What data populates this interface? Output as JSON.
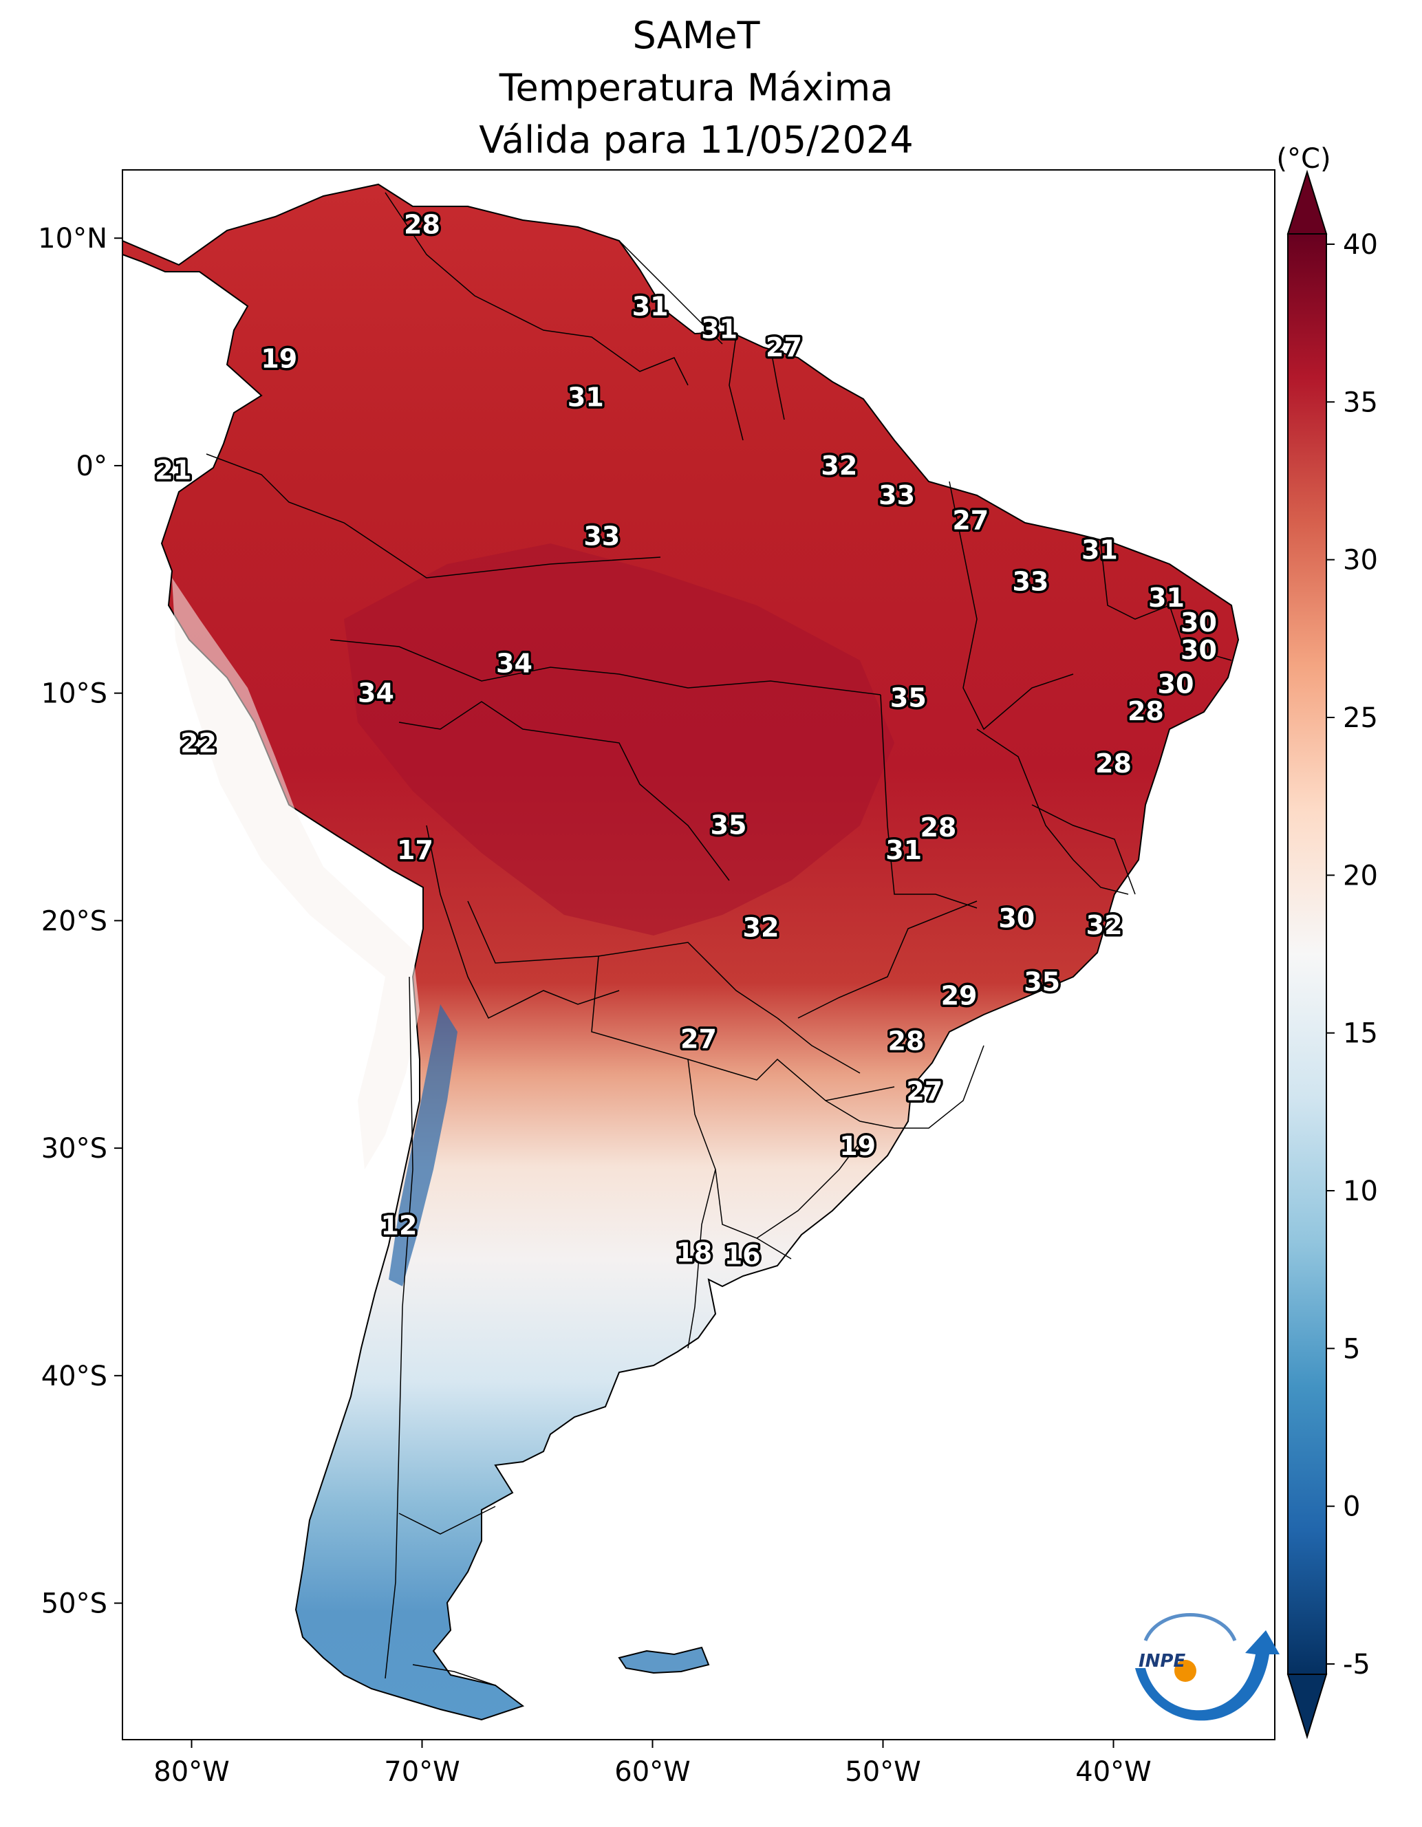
{
  "title": {
    "line1": "SAMeT",
    "line2": "Temperatura Máxima",
    "line3": "Válida para 11/05/2024"
  },
  "map": {
    "region": "South America",
    "variable": "Maximum temperature",
    "lon_range": [
      -83,
      -33
    ],
    "lat_range": [
      -56,
      13
    ],
    "lon_ticks": [
      "80°W",
      "70°W",
      "60°W",
      "50°W",
      "40°W"
    ],
    "lat_ticks": [
      "10°N",
      "0°",
      "10°S",
      "20°S",
      "30°S",
      "40°S",
      "50°S"
    ],
    "station_values": [
      {
        "value": "28",
        "lon": -70.0,
        "lat": 10.6
      },
      {
        "value": "19",
        "lon": -76.2,
        "lat": 4.7
      },
      {
        "value": "21",
        "lon": -80.8,
        "lat": -0.2
      },
      {
        "value": "31",
        "lon": -60.1,
        "lat": 7.0
      },
      {
        "value": "31",
        "lon": -57.1,
        "lat": 6.0
      },
      {
        "value": "27",
        "lon": -54.3,
        "lat": 5.2
      },
      {
        "value": "31",
        "lon": -62.9,
        "lat": 3.0
      },
      {
        "value": "32",
        "lon": -51.9,
        "lat": -0.0
      },
      {
        "value": "33",
        "lon": -49.4,
        "lat": -1.3
      },
      {
        "value": "27",
        "lon": -46.2,
        "lat": -2.4
      },
      {
        "value": "33",
        "lon": -62.2,
        "lat": -3.1
      },
      {
        "value": "31",
        "lon": -40.6,
        "lat": -3.7
      },
      {
        "value": "33",
        "lon": -43.6,
        "lat": -5.1
      },
      {
        "value": "31",
        "lon": -37.7,
        "lat": -5.8
      },
      {
        "value": "30",
        "lon": -36.3,
        "lat": -6.9
      },
      {
        "value": "30",
        "lon": -36.3,
        "lat": -8.1
      },
      {
        "value": "34",
        "lon": -66.0,
        "lat": -8.7
      },
      {
        "value": "34",
        "lon": -72.0,
        "lat": -10.0
      },
      {
        "value": "35",
        "lon": -48.9,
        "lat": -10.2
      },
      {
        "value": "30",
        "lon": -37.3,
        "lat": -9.6
      },
      {
        "value": "28",
        "lon": -38.6,
        "lat": -10.8
      },
      {
        "value": "22",
        "lon": -79.7,
        "lat": -12.2
      },
      {
        "value": "28",
        "lon": -40.0,
        "lat": -13.1
      },
      {
        "value": "35",
        "lon": -56.7,
        "lat": -15.8
      },
      {
        "value": "28",
        "lon": -47.6,
        "lat": -15.9
      },
      {
        "value": "31",
        "lon": -49.1,
        "lat": -16.9
      },
      {
        "value": "17",
        "lon": -70.3,
        "lat": -16.9
      },
      {
        "value": "30",
        "lon": -44.2,
        "lat": -19.9
      },
      {
        "value": "32",
        "lon": -40.4,
        "lat": -20.2
      },
      {
        "value": "32",
        "lon": -55.3,
        "lat": -20.3
      },
      {
        "value": "29",
        "lon": -46.7,
        "lat": -23.3
      },
      {
        "value": "35",
        "lon": -43.1,
        "lat": -22.7
      },
      {
        "value": "27",
        "lon": -58.0,
        "lat": -25.2
      },
      {
        "value": "28",
        "lon": -49.0,
        "lat": -25.3
      },
      {
        "value": "27",
        "lon": -48.2,
        "lat": -27.5
      },
      {
        "value": "19",
        "lon": -51.1,
        "lat": -29.9
      },
      {
        "value": "12",
        "lon": -71.0,
        "lat": -33.4
      },
      {
        "value": "18",
        "lon": -58.2,
        "lat": -34.6
      },
      {
        "value": "16",
        "lon": -56.1,
        "lat": -34.7
      }
    ]
  },
  "colorbar": {
    "unit": "(°C)",
    "ticks": [
      "40",
      "35",
      "30",
      "25",
      "20",
      "15",
      "10",
      "5",
      "0",
      "-5"
    ],
    "range": [
      -5,
      40
    ],
    "colormap": [
      "#053061",
      "#2166ac",
      "#4393c3",
      "#92c5de",
      "#d1e5f0",
      "#f7f7f7",
      "#fddbc7",
      "#f4a582",
      "#d6604d",
      "#b2182b",
      "#67001f"
    ]
  },
  "logo": {
    "text": "INPE"
  }
}
